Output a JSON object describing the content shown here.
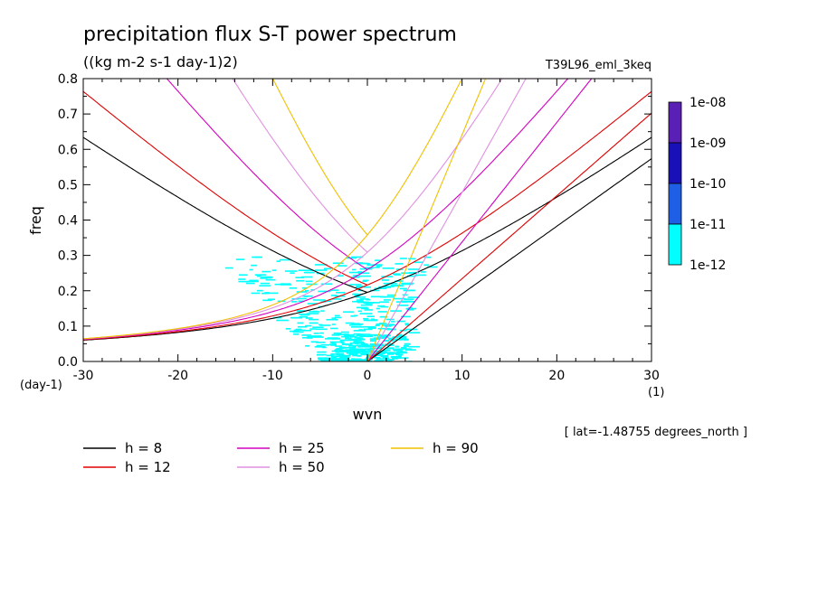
{
  "chart_data": {
    "type": "line",
    "title": "precipitation flux S-T power spectrum",
    "units": "((kg m-2 s-1 day-1)2)",
    "dataset": "T39L96_eml_3keq",
    "xlabel": "wvn",
    "ylabel": "freq",
    "x_unit": "(1)",
    "y_unit": "(day-1)",
    "xlim": [
      -30,
      30
    ],
    "ylim": [
      0.0,
      0.8
    ],
    "xticks": [
      "-30",
      "-20",
      "-10",
      "0",
      "10",
      "20",
      "30"
    ],
    "yticks": [
      "0.0",
      "0.1",
      "0.2",
      "0.3",
      "0.4",
      "0.5",
      "0.6",
      "0.7",
      "0.8"
    ],
    "annotation": "[ lat=-1.48755 degrees_north ]",
    "grid": false,
    "legend_placement": "bottom",
    "colorbar": {
      "labels": [
        "1e-08",
        "1e-09",
        "1e-10",
        "1e-11",
        "1e-12"
      ],
      "colors": [
        "#5a1fb4",
        "#1a10b8",
        "#1f5fe6",
        "#00ffff"
      ]
    },
    "series": [
      {
        "name": "h = 8",
        "equivalent_depth_m": 8,
        "color": "#000000"
      },
      {
        "name": "h = 12",
        "equivalent_depth_m": 12,
        "color": "#e00000"
      },
      {
        "name": "h = 25",
        "equivalent_depth_m": 25,
        "color": "#d400c0"
      },
      {
        "name": "h = 50",
        "equivalent_depth_m": 50,
        "color": "#e090e0"
      },
      {
        "name": "h = 90",
        "equivalent_depth_m": 90,
        "color": "#f0c000"
      }
    ],
    "shading_color": "#00ffff"
  }
}
